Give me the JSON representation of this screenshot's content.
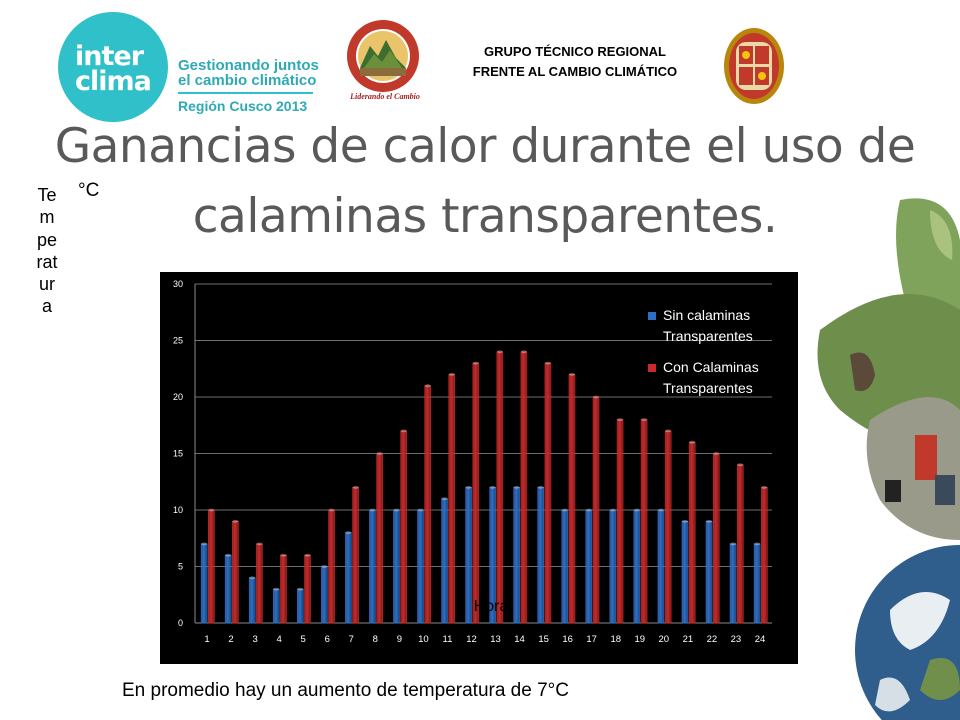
{
  "header": {
    "interclima": {
      "word1": "inter",
      "word2": "clima",
      "tag1": "Gestionando juntos",
      "tag2": "el cambio climático",
      "tag3": "Región Cusco 2013"
    },
    "seal_motto": "Liderando el Cambio",
    "grupo_line1": "GRUPO TÉCNICO REGIONAL",
    "grupo_line2": "FRENTE AL CAMBIO CLIMÁTICO"
  },
  "slide": {
    "title": "Ganancias de calor durante el uso de calaminas transparentes.",
    "ylabel": "Temperatura",
    "yunit": "°C",
    "footer": "En promedio hay un aumento de temperatura de 7°C"
  },
  "colors": {
    "series_a": "#2e6fc4",
    "series_b": "#c62a2a",
    "chart_bg": "#000000",
    "axis_text": "#ffffff",
    "title_text": "#595959",
    "brand_teal": "#2fc0c9"
  },
  "chart_data": {
    "type": "bar",
    "title": "",
    "xlabel": "Hora",
    "ylabel": "",
    "ylim": [
      0,
      30
    ],
    "yticks": [
      0,
      5,
      10,
      15,
      20,
      25,
      30
    ],
    "grid": true,
    "legend_position": "top-right",
    "categories": [
      "1",
      "2",
      "3",
      "4",
      "5",
      "6",
      "7",
      "8",
      "9",
      "10",
      "11",
      "12",
      "13",
      "14",
      "15",
      "16",
      "17",
      "18",
      "19",
      "20",
      "21",
      "22",
      "23",
      "24"
    ],
    "series": [
      {
        "name": "Sin calaminas Transparentes",
        "legend_lines": [
          "Sin calaminas",
          "Transparentes"
        ],
        "color": "#2e6fc4",
        "values": [
          7,
          6,
          4,
          3,
          3,
          5,
          8,
          10,
          10,
          10,
          11,
          12,
          12,
          12,
          12,
          10,
          10,
          10,
          10,
          10,
          9,
          9,
          7,
          7
        ]
      },
      {
        "name": "Con Calaminas Transparentes",
        "legend_lines": [
          "Con Calaminas",
          "Transparentes"
        ],
        "color": "#c62a2a",
        "values": [
          10,
          9,
          7,
          6,
          6,
          10,
          12,
          15,
          17,
          21,
          22,
          23,
          24,
          24,
          23,
          22,
          20,
          18,
          18,
          17,
          16,
          15,
          14,
          12
        ]
      }
    ]
  }
}
